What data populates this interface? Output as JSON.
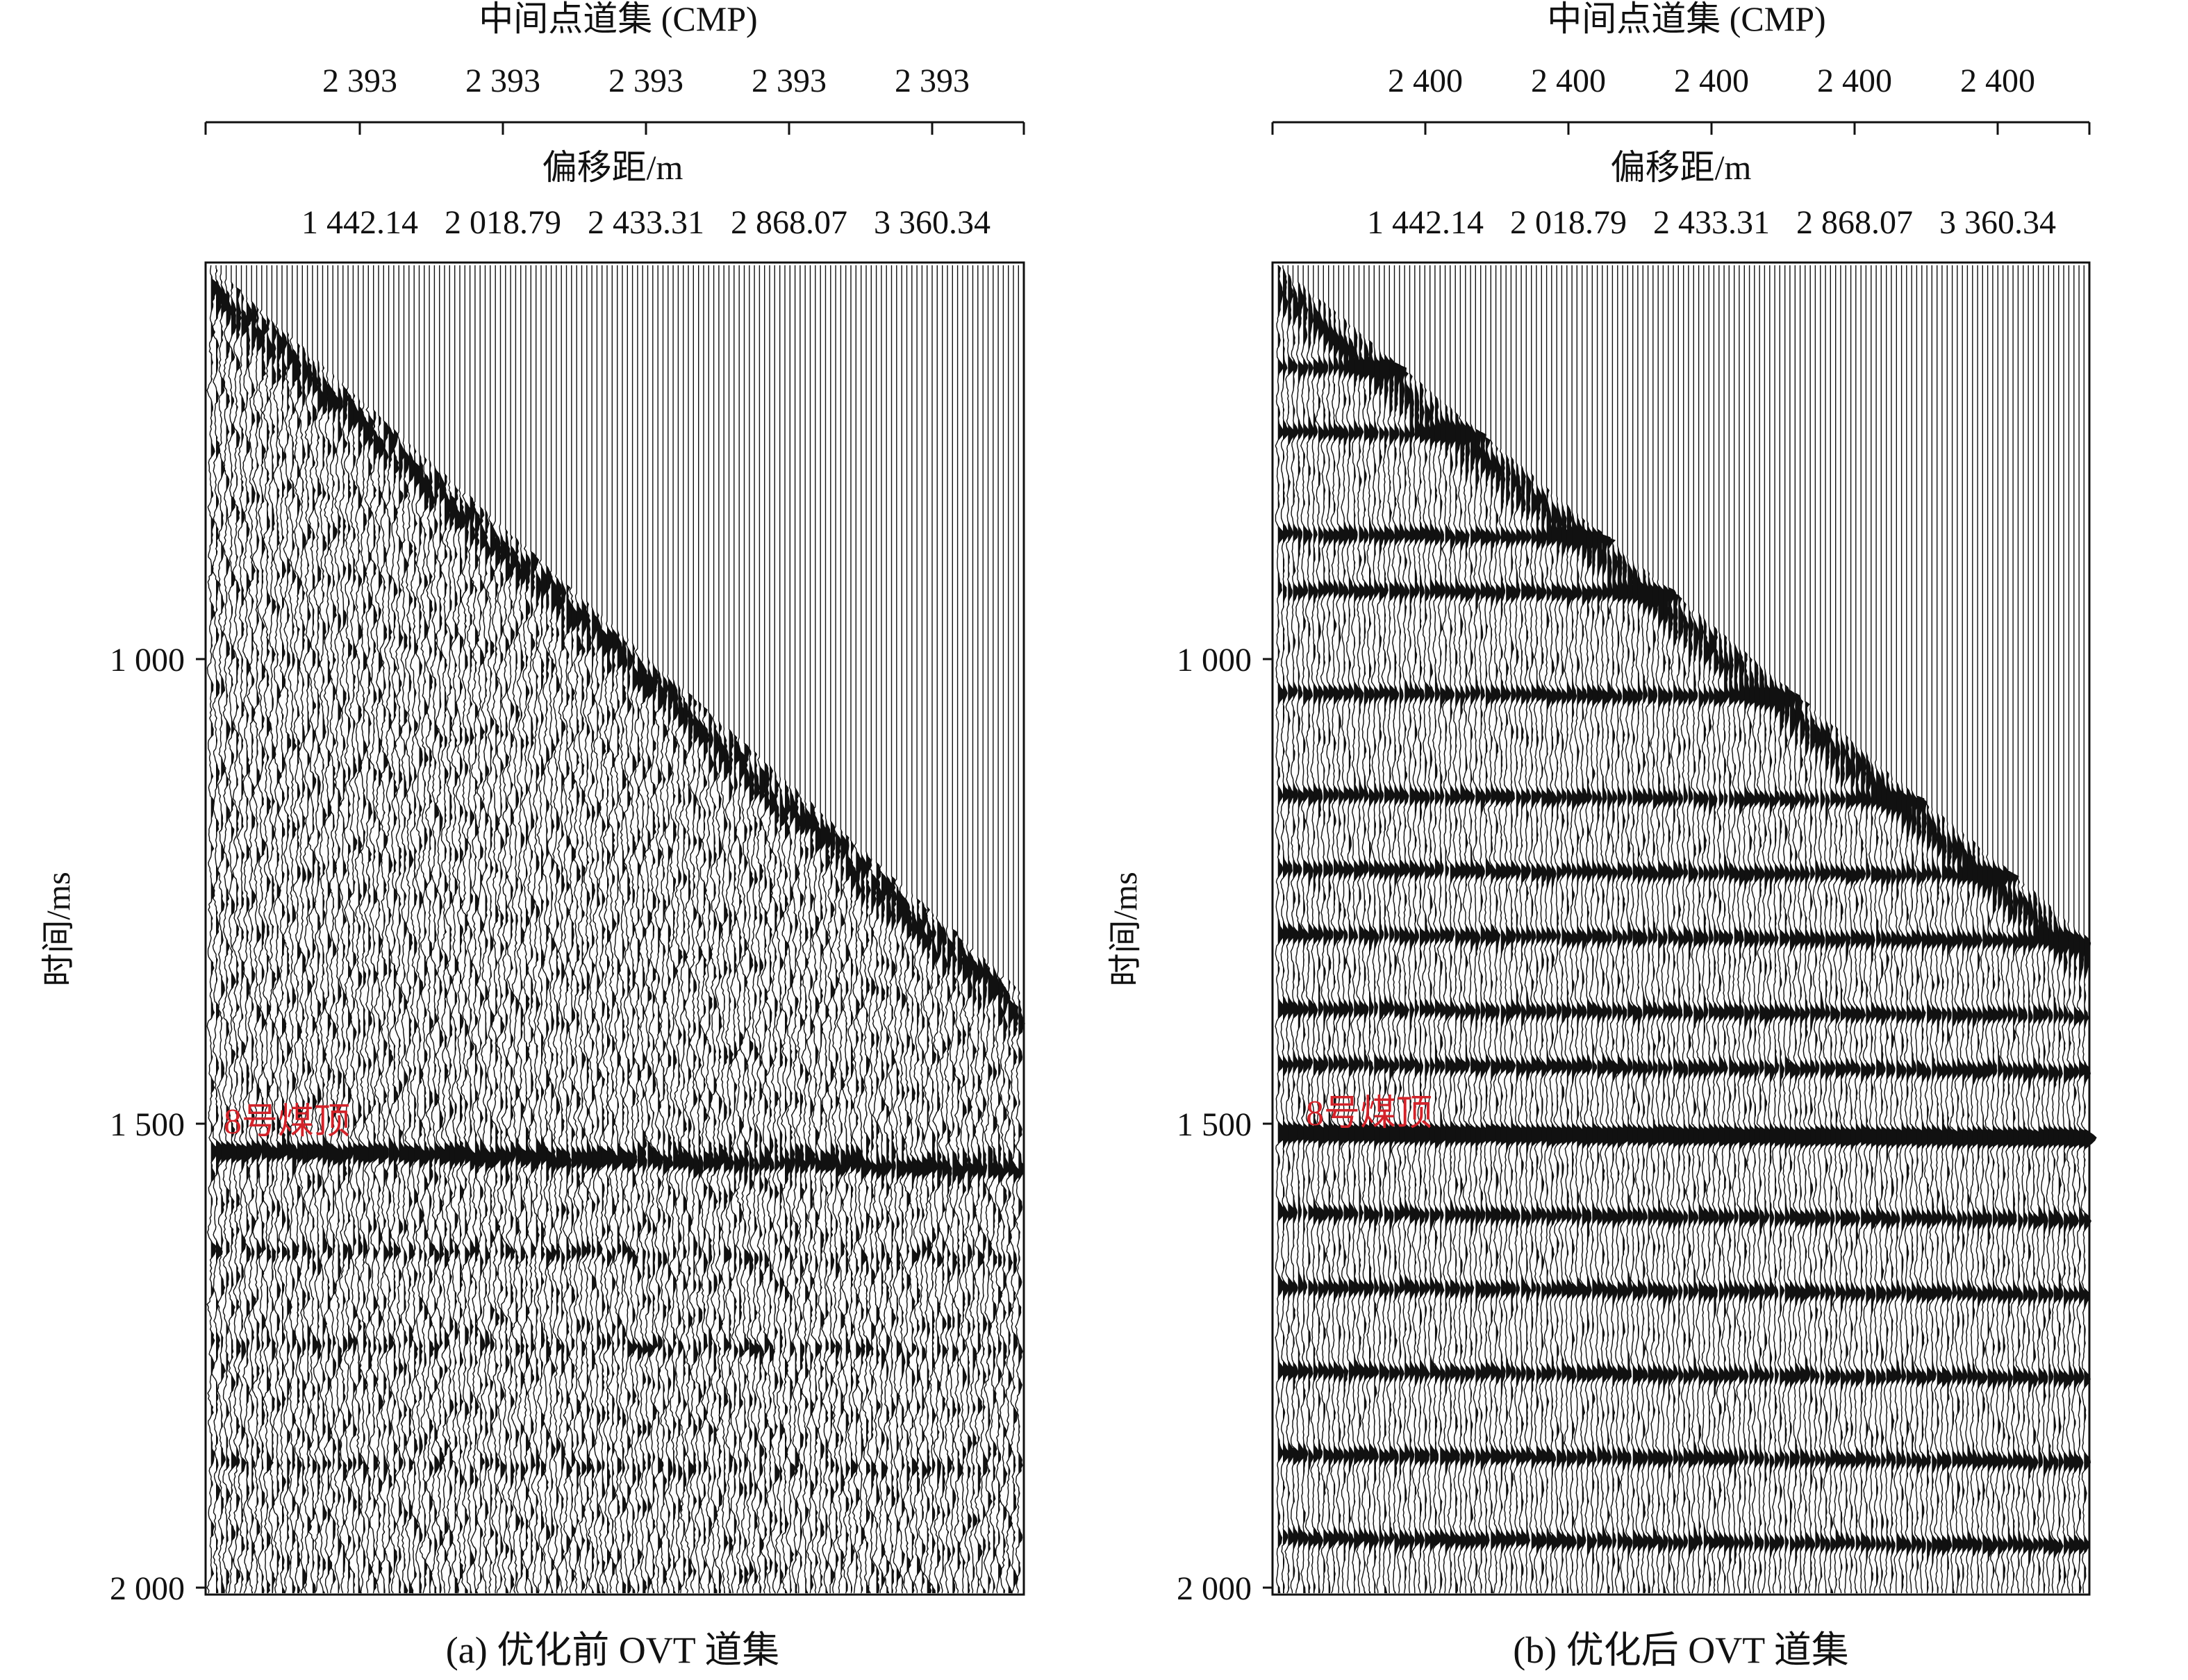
{
  "chart_data": [
    {
      "type": "heatmap",
      "description_kind": "seismic wiggle-trace gather",
      "caption": "(a) 优化前 OVT 道集",
      "top_axis_title": "中间点道集 (CMP)",
      "top_tick_labels": [
        "2 393",
        "2 393",
        "2 393",
        "2 393",
        "2 393"
      ],
      "offset_axis_title": "偏移距/m",
      "offset_tick_labels": [
        "1 442.14",
        "2 018.79",
        "2 433.31",
        "2 868.07",
        "3 360.34"
      ],
      "ylabel": "时间/ms",
      "y_tick_labels": [
        "1 000",
        "1 500",
        "2 000"
      ],
      "y_ticks": [
        1000,
        1500,
        2000
      ],
      "ylim": [
        570,
        2010
      ],
      "annotation": {
        "text": "8号煤顶",
        "time_ms": 1500
      },
      "horizon_8_time_ms": [
        1530,
        1550
      ],
      "data_onset_ms": [
        580,
        1360
      ],
      "trace_count": 160,
      "reflector_times_ms": [
        1530,
        1640,
        1740,
        1870
      ],
      "reflector_strength": 0.7,
      "noise_level": 1.0,
      "colors": {
        "ink": "#111111",
        "annotation": "#d2232a",
        "background": "#ffffff"
      }
    },
    {
      "type": "heatmap",
      "description_kind": "seismic wiggle-trace gather",
      "caption": "(b) 优化后 OVT 道集",
      "top_axis_title": "中间点道集 (CMP)",
      "top_tick_labels": [
        "2 400",
        "2 400",
        "2 400",
        "2 400",
        "2 400"
      ],
      "offset_axis_title": "偏移距/m",
      "offset_tick_labels": [
        "1 442.14",
        "2 018.79",
        "2 433.31",
        "2 868.07",
        "3 360.34"
      ],
      "ylabel": "时间/ms",
      "y_tick_labels": [
        "1 000",
        "1 500",
        "2 000"
      ],
      "y_ticks": [
        1000,
        1500,
        2000
      ],
      "ylim": [
        570,
        2010
      ],
      "annotation": {
        "text": "8号煤顶",
        "time_ms": 1495
      },
      "horizon_8_time_ms": [
        1512,
        1515
      ],
      "data_onset_ms": [
        580,
        1300
      ],
      "trace_count": 160,
      "reflector_times_ms": [
        690,
        760,
        870,
        930,
        1040,
        1150,
        1230,
        1300,
        1380,
        1440,
        1512,
        1600,
        1680,
        1770,
        1860,
        1950
      ],
      "reflector_strength": 1.6,
      "noise_level": 0.6,
      "colors": {
        "ink": "#111111",
        "annotation": "#d2232a",
        "background": "#ffffff"
      }
    }
  ]
}
